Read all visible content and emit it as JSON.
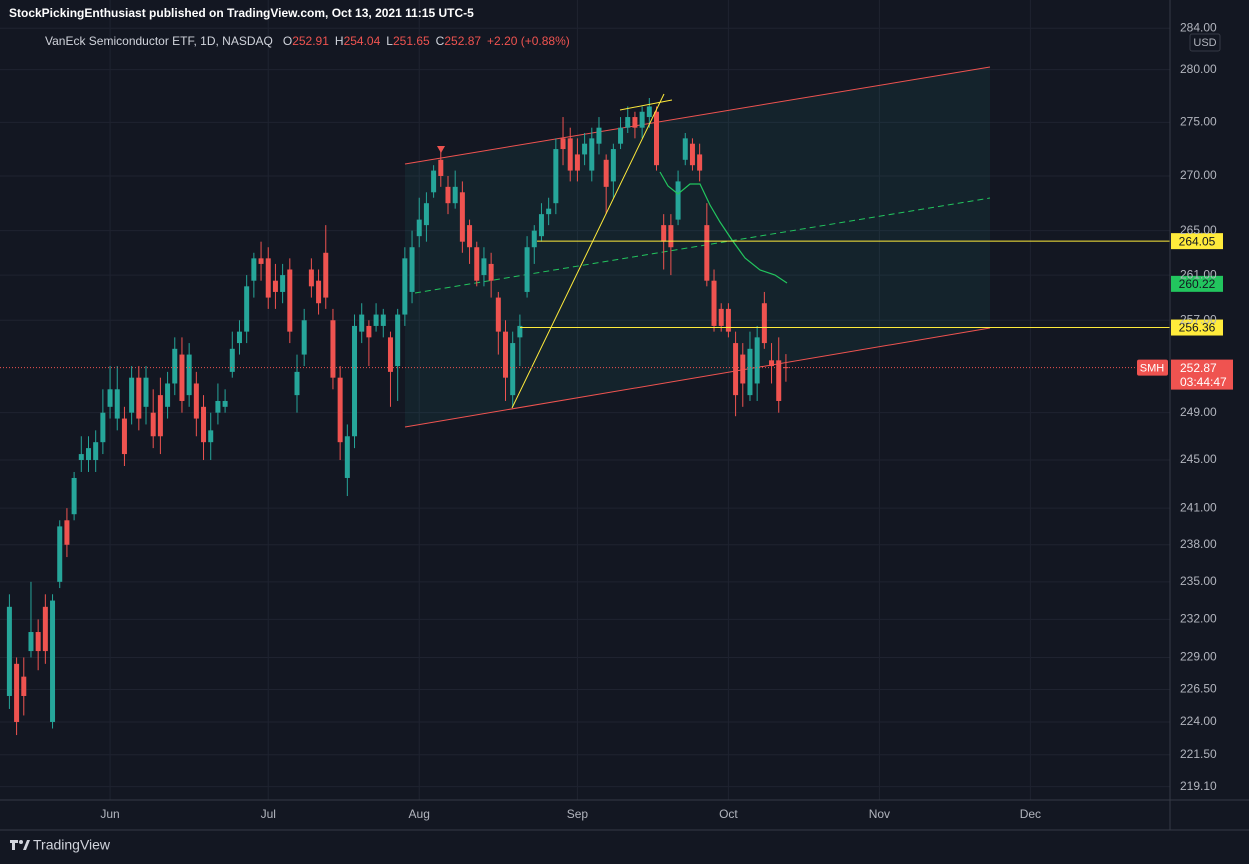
{
  "header": {
    "publisher": "StockPickingEnthusiast published on TradingView.com, Oct 13, 2021 11:15 UTC-5"
  },
  "chart_data": {
    "type": "candlestick",
    "title": "VanEck Semiconductor ETF, 1D, NASDAQ",
    "ohlc_labels": [
      "O",
      "H",
      "L",
      "C"
    ],
    "change": "+2.20 (+0.88%)",
    "currency": "USD",
    "symbol": "SMH",
    "countdown": "03:44:47",
    "log_scale": true,
    "grid": true,
    "up_color": "#26a69a",
    "down_color": "#ef5350",
    "categories": [
      null,
      null,
      null,
      null,
      null,
      null,
      null,
      null,
      null,
      null,
      null,
      null,
      null,
      null,
      "Jun",
      null,
      null,
      null,
      null,
      null,
      null,
      null,
      null,
      null,
      null,
      null,
      null,
      null,
      null,
      null,
      null,
      null,
      null,
      null,
      null,
      null,
      "Jul",
      null,
      null,
      null,
      null,
      null,
      null,
      null,
      null,
      null,
      null,
      null,
      null,
      null,
      null,
      null,
      null,
      null,
      null,
      null,
      null,
      "Aug",
      null,
      null,
      null,
      null,
      null,
      null,
      null,
      null,
      null,
      null,
      null,
      null,
      null,
      null,
      null,
      null,
      null,
      null,
      null,
      null,
      null,
      "Sep",
      null,
      null,
      null,
      null,
      null,
      null,
      null,
      null,
      null,
      null,
      null,
      null,
      null,
      null,
      null,
      null,
      null,
      null,
      null,
      null,
      "Oct",
      null,
      null,
      null,
      null,
      null,
      null,
      null,
      null,
      null,
      null,
      null,
      null,
      null,
      null,
      null,
      null,
      null,
      null,
      null,
      null,
      "Nov",
      null,
      null,
      null,
      null,
      null,
      null,
      null,
      null,
      null,
      null,
      null,
      null,
      null,
      null,
      null,
      null,
      null,
      null,
      null,
      null,
      "Dec",
      null,
      null,
      null,
      null,
      null,
      null,
      null,
      null,
      null,
      null,
      null,
      null,
      null,
      null,
      null,
      null,
      null,
      null,
      null,
      null
    ],
    "open": [
      226,
      228.5,
      227.5,
      229.5,
      231,
      233,
      224,
      235,
      240,
      240.5,
      245,
      245,
      245,
      246.5,
      249.5,
      248.5,
      248.5,
      249,
      252,
      249.5,
      249,
      250.5,
      249.5,
      251.5,
      254,
      250.5,
      251.5,
      249.5,
      246.5,
      249,
      249.5,
      252.5,
      255,
      256,
      260.5,
      262.5,
      262.5,
      260.5,
      259.5,
      261.5,
      250.5,
      254,
      261.5,
      260.5,
      263,
      257,
      252,
      243.5,
      247,
      256,
      256.5,
      256.5,
      256.5,
      255.5,
      253,
      257.5,
      259.5,
      264.5,
      265.5,
      268.5,
      271.5,
      269,
      267.5,
      268.5,
      265.5,
      263.5,
      261,
      262,
      259,
      256,
      250.5,
      255.5,
      259.5,
      263.5,
      264.5,
      266.5,
      267.5,
      273.5,
      273.5,
      272,
      272,
      270.5,
      273,
      271.5,
      269.5,
      273,
      274.5,
      275.5,
      274.5,
      275.5,
      276,
      265.5,
      265.5,
      266,
      271.5,
      273,
      272,
      265.5,
      260.5,
      258,
      258,
      255,
      254,
      250.5,
      251.5,
      258.5,
      253.5,
      253.5,
      252.91,
      null,
      null,
      null,
      null,
      null,
      null,
      null,
      null,
      null,
      null,
      null,
      null,
      null,
      null,
      null,
      null,
      null,
      null,
      null,
      null,
      null,
      null,
      null,
      null,
      null,
      null,
      null,
      null,
      null,
      null,
      null,
      null,
      null,
      null,
      null,
      null,
      null,
      null,
      null,
      null,
      null,
      null,
      null,
      null,
      null,
      null,
      null,
      null,
      null,
      null,
      null,
      null,
      null,
      null
    ],
    "high": [
      234,
      229,
      229,
      235,
      232,
      234,
      234,
      240,
      241,
      244,
      247,
      247,
      247.5,
      251,
      253,
      253,
      249.5,
      253,
      253,
      253,
      251,
      252,
      252.5,
      255.5,
      255.5,
      255,
      252.5,
      250.5,
      249,
      251.5,
      251,
      256,
      257,
      261,
      263,
      264,
      263.5,
      262,
      262,
      262.5,
      254,
      258,
      262.5,
      261.5,
      265.5,
      258,
      253,
      248,
      257.5,
      258.5,
      257,
      258.5,
      258,
      256,
      258,
      263.5,
      265,
      268,
      268.5,
      271,
      272.5,
      270,
      270.5,
      269.5,
      266,
      264,
      263.5,
      263,
      259.5,
      257,
      256,
      257.5,
      264.5,
      265.5,
      267.5,
      268,
      273.5,
      275.5,
      274.5,
      273.5,
      274,
      274.5,
      275.5,
      272,
      273,
      275.5,
      276.5,
      276,
      276.5,
      277.3,
      276.5,
      266.5,
      266.5,
      270.5,
      274,
      273.5,
      273,
      267.5,
      261.5,
      258.5,
      258.5,
      256,
      255,
      256,
      256.5,
      259.5,
      255,
      255.5,
      254.04,
      null,
      null,
      null,
      null,
      null,
      null,
      null,
      null,
      null,
      null,
      null,
      null,
      null,
      null,
      null,
      null,
      null,
      null,
      null,
      null,
      null,
      null,
      null,
      null,
      null,
      null,
      null,
      null,
      null,
      null,
      null,
      null,
      null,
      null,
      null,
      null,
      null,
      null,
      null,
      null,
      null,
      null,
      null,
      null,
      null,
      null,
      null,
      null,
      null,
      null,
      null,
      null,
      null,
      null
    ],
    "low": [
      225,
      223,
      224.5,
      229,
      228,
      228.5,
      223.5,
      234.5,
      237,
      240,
      244,
      244,
      244,
      245.5,
      248.5,
      247.5,
      244.5,
      248,
      247.5,
      248,
      246,
      245.5,
      248.5,
      250.5,
      249,
      249.5,
      247,
      245,
      245,
      248,
      249,
      252,
      254,
      255,
      259,
      260.5,
      258,
      258,
      258.5,
      255,
      249,
      253,
      259,
      257.5,
      258,
      251,
      245,
      242,
      246,
      255,
      253,
      256,
      255.5,
      249.5,
      250,
      256.5,
      258.5,
      263.5,
      264,
      268,
      269,
      266.5,
      267,
      263,
      262,
      260,
      260,
      259,
      254,
      250,
      249.5,
      253,
      259,
      262,
      264,
      265.5,
      266.5,
      271,
      269.5,
      269.5,
      271,
      269.5,
      272,
      266.5,
      268,
      272.5,
      274,
      273.5,
      273.5,
      274.5,
      270.5,
      261.5,
      261,
      265.5,
      271,
      270.5,
      269.5,
      260,
      256,
      256,
      255.5,
      248.7,
      249.5,
      250,
      250,
      254.5,
      251.5,
      249,
      251.65,
      null,
      null,
      null,
      null,
      null,
      null,
      null,
      null,
      null,
      null,
      null,
      null,
      null,
      null,
      null,
      null,
      null,
      null,
      null,
      null,
      null,
      null,
      null,
      null,
      null,
      null,
      null,
      null,
      null,
      null,
      null,
      null,
      null,
      null,
      null,
      null,
      null,
      null,
      null,
      null,
      null,
      null,
      null,
      null,
      null,
      null,
      null,
      null,
      null,
      null,
      null,
      null,
      null,
      null
    ],
    "close": [
      233,
      224,
      226,
      231,
      229.5,
      229.5,
      233.5,
      239.5,
      238,
      243.5,
      245.5,
      246,
      246.5,
      249,
      251,
      251,
      245.5,
      252,
      248.5,
      252,
      247,
      247,
      251.5,
      254.5,
      250,
      254,
      248.5,
      246.5,
      247.5,
      250,
      250,
      254.5,
      256,
      260,
      262.5,
      262,
      259,
      259.5,
      261,
      256,
      252.5,
      257,
      260,
      258.5,
      259,
      252,
      246.5,
      247,
      256.5,
      257.5,
      255.5,
      257.5,
      257.5,
      252.5,
      257.5,
      262.5,
      263.5,
      266,
      267.5,
      270.5,
      270,
      267.5,
      269,
      264,
      263.5,
      260.5,
      262.5,
      260.5,
      256,
      252,
      255,
      256.5,
      263.5,
      265,
      266.5,
      267,
      272.5,
      272.5,
      270.5,
      270.5,
      273,
      273.5,
      274.5,
      269,
      272.5,
      274.5,
      275.5,
      274.5,
      276,
      276.5,
      271,
      264,
      263.5,
      269.5,
      273.5,
      271,
      270.5,
      260.5,
      256.5,
      256.5,
      256,
      250.5,
      251.5,
      254.5,
      255.5,
      255,
      253,
      250,
      252.87,
      null,
      null,
      null,
      null,
      null,
      null,
      null,
      null,
      null,
      null,
      null,
      null,
      null,
      null,
      null,
      null,
      null,
      null,
      null,
      null,
      null,
      null,
      null,
      null,
      null,
      null,
      null,
      null,
      null,
      null,
      null,
      null,
      null,
      null,
      null,
      null,
      null,
      null,
      null,
      null,
      null,
      null,
      null,
      null,
      null,
      null,
      null,
      null,
      null,
      null,
      null,
      null,
      null,
      null
    ],
    "ylim": [
      218.1,
      284.8
    ],
    "yticks": [
      {
        "value": 284,
        "label": "284.00"
      },
      {
        "value": 280,
        "label": "280.00"
      },
      {
        "value": 275,
        "label": "275.00"
      },
      {
        "value": 270,
        "label": "270.00"
      },
      {
        "value": 265,
        "label": "265.00"
      },
      {
        "value": 261,
        "label": "261.00"
      },
      {
        "value": 257,
        "label": "257.00"
      },
      {
        "value": 249,
        "label": "249.00"
      },
      {
        "value": 245,
        "label": "245.00"
      },
      {
        "value": 241,
        "label": "241.00"
      },
      {
        "value": 238,
        "label": "238.00"
      },
      {
        "value": 235,
        "label": "235.00"
      },
      {
        "value": 232,
        "label": "232.00"
      },
      {
        "value": 229,
        "label": "229.00"
      },
      {
        "value": 226.5,
        "label": "226.50"
      },
      {
        "value": 224,
        "label": "224.00"
      },
      {
        "value": 221.5,
        "label": "221.50"
      },
      {
        "value": 219.1,
        "label": "219.10"
      }
    ],
    "levels": [
      264.05,
      256.36
    ],
    "level_color": "#ffeb3b",
    "moving_average_last": 260.22,
    "moving_average_color": "#22c55e"
  },
  "footer": {
    "brand": "TradingView"
  }
}
